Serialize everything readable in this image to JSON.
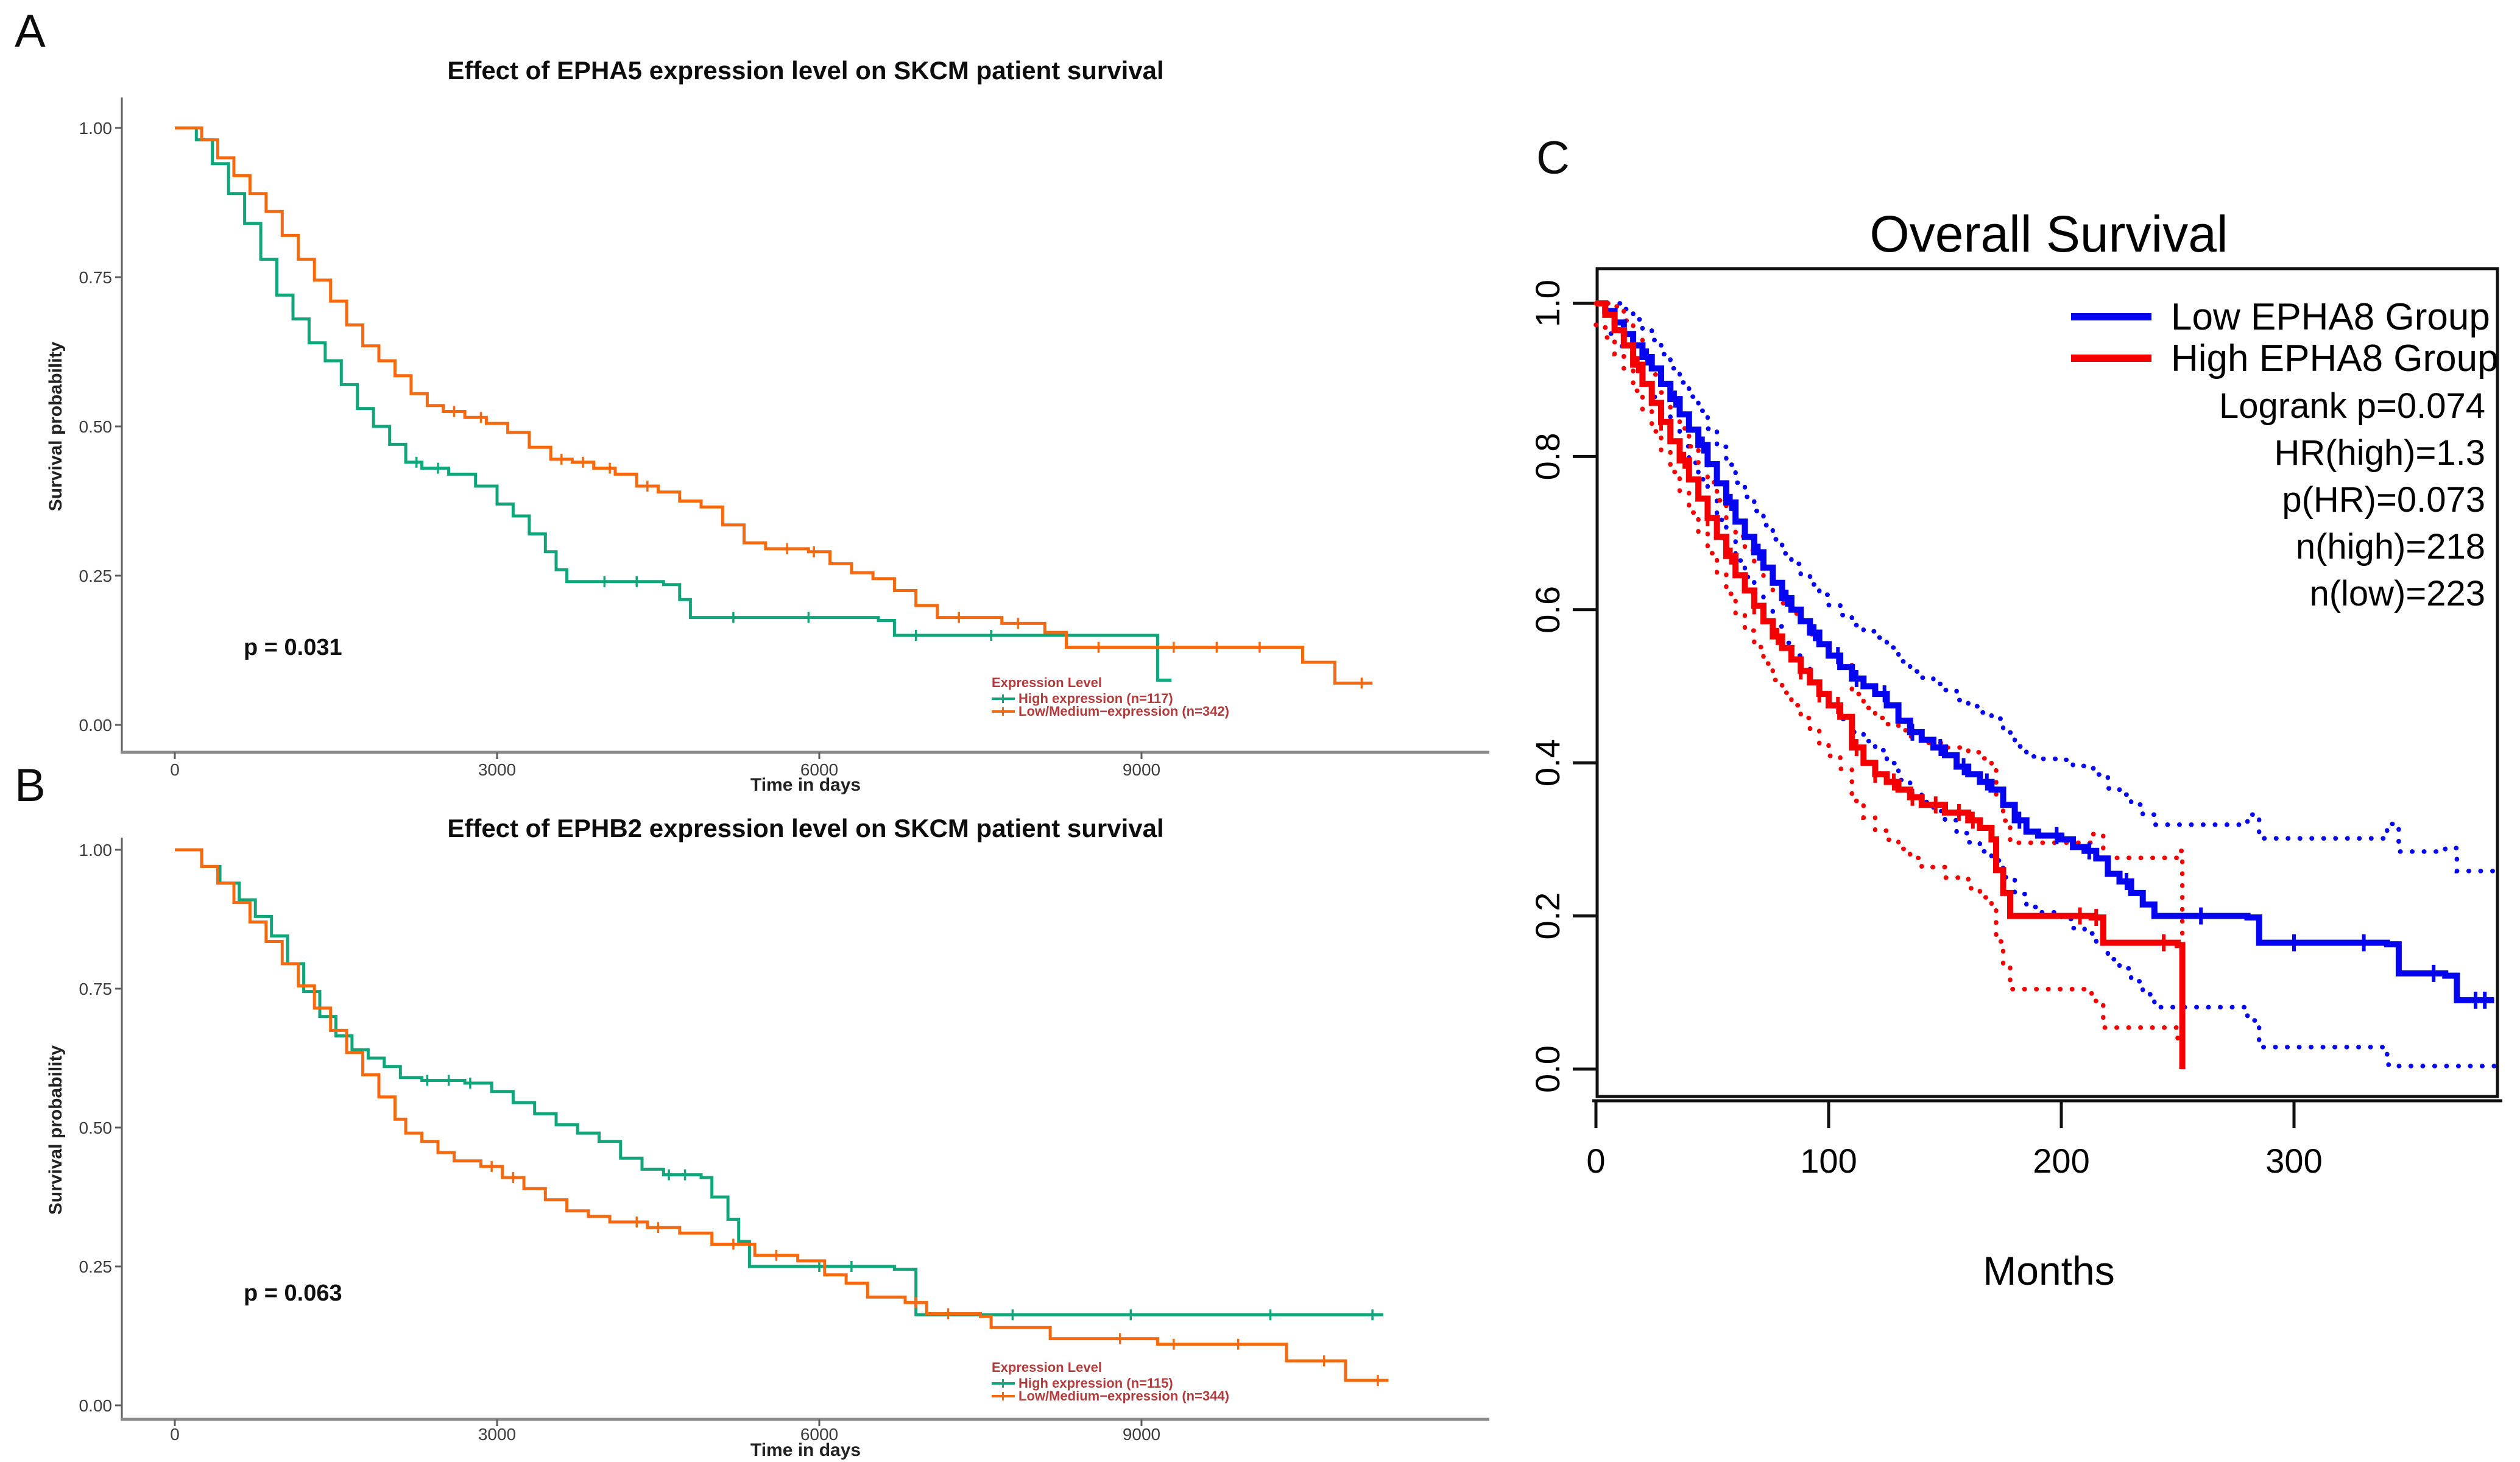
{
  "figure": {
    "background": "#ffffff",
    "description": "Three Kaplan-Meier survival plots"
  },
  "colors": {
    "green_high": "#10A57A",
    "orange_low": "#F5690F",
    "legend_red_text": "#B23B3B",
    "c_blue": "#0505F0",
    "c_red": "#F50000",
    "axis_gray": "#8a8a8a",
    "axis_dark": "#5f5f5f",
    "tick_text": "#3d3d3d",
    "c_frame": "#111111"
  },
  "chart_data": [
    {
      "panel_label": "A",
      "type": "line",
      "subtype": "kaplan-meier-step",
      "title": "Effect of EPHA5 expression level on SKCM patient survival",
      "xlabel": "Time in days",
      "ylabel": "Survival probability",
      "xlim": [
        0,
        12200
      ],
      "ylim": [
        0,
        1
      ],
      "xticks": [
        0,
        3000,
        6000,
        9000
      ],
      "xtick_labels": [
        "0",
        "3000",
        "6000",
        "9000"
      ],
      "yticks": [
        0,
        0.25,
        0.5,
        0.75,
        1
      ],
      "ytick_labels": [
        "0.00",
        "0.25",
        "0.50",
        "0.75",
        "1.00"
      ],
      "grid": false,
      "annotation": "p = 0.031",
      "legend": {
        "title": "Expression Level",
        "position": "bottom-right",
        "items": [
          {
            "label": "High expression (n=117)",
            "color": "#10A57A"
          },
          {
            "label": "Low/Medium−expression (n=342)",
            "color": "#F5690F"
          }
        ]
      },
      "series": [
        {
          "name": "High expression (n=117)",
          "color": "#10A57A",
          "step": true,
          "x": [
            0,
            200,
            350,
            500,
            650,
            800,
            950,
            1100,
            1250,
            1400,
            1550,
            1700,
            1850,
            2000,
            2150,
            2300,
            2550,
            2800,
            3000,
            3150,
            3300,
            3450,
            3550,
            3650,
            4550,
            4700,
            4800,
            6550,
            6700,
            9050,
            9150,
            9280
          ],
          "y": [
            1,
            0.98,
            0.94,
            0.89,
            0.84,
            0.78,
            0.72,
            0.68,
            0.64,
            0.61,
            0.57,
            0.53,
            0.5,
            0.47,
            0.44,
            0.43,
            0.42,
            0.4,
            0.37,
            0.35,
            0.32,
            0.29,
            0.26,
            0.24,
            0.235,
            0.21,
            0.18,
            0.175,
            0.15,
            0.15,
            0.075,
            0.075
          ],
          "censor_x": [
            2250,
            2450,
            4000,
            4300,
            5200,
            5900,
            6900,
            7600
          ]
        },
        {
          "name": "Low/Medium−expression (n=342)",
          "color": "#F5690F",
          "step": true,
          "x": [
            0,
            250,
            400,
            550,
            700,
            850,
            1000,
            1150,
            1300,
            1450,
            1600,
            1750,
            1900,
            2050,
            2200,
            2350,
            2500,
            2700,
            2900,
            3100,
            3300,
            3500,
            3700,
            3900,
            4100,
            4300,
            4500,
            4700,
            4900,
            5100,
            5300,
            5500,
            5900,
            6100,
            6300,
            6500,
            6700,
            6900,
            7100,
            7700,
            8100,
            8300,
            10300,
            10500,
            10800,
            11150
          ],
          "y": [
            1,
            0.98,
            0.95,
            0.92,
            0.89,
            0.86,
            0.82,
            0.78,
            0.745,
            0.71,
            0.67,
            0.635,
            0.61,
            0.585,
            0.555,
            0.535,
            0.525,
            0.515,
            0.505,
            0.49,
            0.465,
            0.445,
            0.44,
            0.43,
            0.42,
            0.4,
            0.39,
            0.375,
            0.365,
            0.335,
            0.305,
            0.295,
            0.29,
            0.27,
            0.255,
            0.245,
            0.225,
            0.2,
            0.18,
            0.17,
            0.155,
            0.13,
            0.13,
            0.105,
            0.07,
            0.07
          ],
          "censor_x": [
            2600,
            2850,
            3600,
            3800,
            4050,
            4400,
            5700,
            5950,
            7300,
            7850,
            8600,
            9300,
            9700,
            10100,
            11050
          ]
        }
      ]
    },
    {
      "panel_label": "B",
      "type": "line",
      "subtype": "kaplan-meier-step",
      "title": "Effect of EPHB2 expression level on SKCM patient survival",
      "xlabel": "Time in days",
      "ylabel": "Survival probability",
      "xlim": [
        0,
        12200
      ],
      "ylim": [
        0,
        1
      ],
      "xticks": [
        0,
        3000,
        6000,
        9000
      ],
      "xtick_labels": [
        "0",
        "3000",
        "6000",
        "9000"
      ],
      "yticks": [
        0,
        0.25,
        0.5,
        0.75,
        1
      ],
      "ytick_labels": [
        "0.00",
        "0.25",
        "0.50",
        "0.75",
        "1.00"
      ],
      "grid": false,
      "annotation": "p = 0.063",
      "legend": {
        "title": "Expression Level",
        "position": "bottom-right",
        "items": [
          {
            "label": "High expression (n=115)",
            "color": "#10A57A"
          },
          {
            "label": "Low/Medium−expression (n=344)",
            "color": "#F5690F"
          }
        ]
      },
      "series": [
        {
          "name": "High expression (n=115)",
          "color": "#10A57A",
          "step": true,
          "x": [
            0,
            250,
            420,
            600,
            750,
            900,
            1050,
            1200,
            1350,
            1500,
            1650,
            1800,
            1950,
            2100,
            2300,
            2700,
            2950,
            3150,
            3350,
            3550,
            3750,
            3950,
            4150,
            4350,
            4550,
            4900,
            5000,
            5150,
            5250,
            5350,
            6700,
            6900,
            11250
          ],
          "y": [
            1,
            0.97,
            0.94,
            0.91,
            0.88,
            0.845,
            0.795,
            0.745,
            0.7,
            0.665,
            0.64,
            0.625,
            0.61,
            0.59,
            0.585,
            0.58,
            0.565,
            0.545,
            0.525,
            0.505,
            0.49,
            0.475,
            0.445,
            0.425,
            0.415,
            0.41,
            0.375,
            0.335,
            0.295,
            0.25,
            0.245,
            0.163,
            0.163
          ],
          "censor_x": [
            2350,
            2550,
            2750,
            4600,
            4750,
            6000,
            6300,
            7800,
            8900,
            10200,
            11150
          ]
        },
        {
          "name": "Low/Medium−expression (n=344)",
          "color": "#F5690F",
          "step": true,
          "x": [
            0,
            250,
            400,
            550,
            700,
            850,
            1000,
            1150,
            1300,
            1450,
            1600,
            1750,
            1900,
            2050,
            2150,
            2300,
            2450,
            2600,
            2850,
            3050,
            3250,
            3450,
            3650,
            3850,
            4050,
            4400,
            4700,
            5000,
            5400,
            5800,
            6050,
            6250,
            6450,
            6800,
            7000,
            7500,
            7600,
            8150,
            9150,
            10250,
            10350,
            10900,
            11300
          ],
          "y": [
            1,
            0.97,
            0.94,
            0.905,
            0.87,
            0.835,
            0.795,
            0.755,
            0.715,
            0.675,
            0.635,
            0.595,
            0.555,
            0.515,
            0.49,
            0.475,
            0.455,
            0.44,
            0.43,
            0.41,
            0.39,
            0.37,
            0.35,
            0.34,
            0.33,
            0.32,
            0.31,
            0.29,
            0.27,
            0.26,
            0.235,
            0.22,
            0.195,
            0.185,
            0.165,
            0.16,
            0.14,
            0.12,
            0.11,
            0.11,
            0.08,
            0.045,
            0.045
          ],
          "censor_x": [
            2950,
            3150,
            4300,
            4500,
            5200,
            5600,
            6900,
            7200,
            8800,
            9300,
            9900,
            10700,
            11200
          ]
        }
      ]
    },
    {
      "panel_label": "C",
      "type": "line",
      "subtype": "kaplan-meier-step",
      "title": "Overall Survival",
      "xlabel": "Months",
      "ylabel": "",
      "xlim": [
        0,
        386
      ],
      "ylim": [
        0,
        1
      ],
      "xticks": [
        0,
        100,
        200,
        300
      ],
      "xtick_labels": [
        "0",
        "100",
        "200",
        "300"
      ],
      "yticks": [
        0,
        0.2,
        0.4,
        0.6,
        0.8,
        1.0
      ],
      "ytick_labels": [
        "0.0",
        "0.2",
        "0.4",
        "0.6",
        "0.8",
        "1.0"
      ],
      "grid": false,
      "legend": {
        "position": "top-right",
        "items": [
          {
            "label": "Low EPHA8 Group",
            "color": "#0505F0"
          },
          {
            "label": "High EPHA8 Group",
            "color": "#F50000"
          }
        ]
      },
      "stats": [
        "Logrank p=0.074",
        "HR(high)=1.3",
        "p(HR)=0.073",
        "n(high)=218",
        "n(low)=223"
      ],
      "ci": {
        "base": 0.028,
        "slope": 0.00038,
        "style": "dotted"
      },
      "series": [
        {
          "name": "Low EPHA8 Group",
          "color": "#0505F0",
          "step": true,
          "x": [
            0,
            4,
            8,
            12,
            16,
            20,
            24,
            28,
            32,
            36,
            40,
            44,
            48,
            52,
            56,
            60,
            64,
            68,
            72,
            76,
            80,
            84,
            88,
            92,
            96,
            100,
            105,
            110,
            115,
            120,
            125,
            130,
            135,
            140,
            145,
            150,
            155,
            160,
            165,
            170,
            175,
            180,
            185,
            190,
            200,
            205,
            210,
            215,
            220,
            225,
            230,
            235,
            240,
            280,
            285,
            340,
            345,
            365,
            370,
            386
          ],
          "y": [
            1,
            0.99,
            0.975,
            0.96,
            0.945,
            0.93,
            0.915,
            0.895,
            0.875,
            0.855,
            0.835,
            0.815,
            0.79,
            0.765,
            0.74,
            0.715,
            0.695,
            0.675,
            0.655,
            0.635,
            0.615,
            0.6,
            0.585,
            0.57,
            0.555,
            0.54,
            0.525,
            0.51,
            0.5,
            0.49,
            0.475,
            0.455,
            0.44,
            0.43,
            0.42,
            0.41,
            0.395,
            0.385,
            0.375,
            0.365,
            0.345,
            0.325,
            0.31,
            0.305,
            0.3,
            0.29,
            0.285,
            0.275,
            0.255,
            0.245,
            0.23,
            0.215,
            0.2,
            0.198,
            0.165,
            0.163,
            0.125,
            0.122,
            0.09,
            0.09
          ],
          "censor_x": [
            22,
            34,
            46,
            58,
            70,
            82,
            94,
            104,
            112,
            124,
            136,
            148,
            158,
            168,
            182,
            198,
            212,
            228,
            260,
            300,
            330,
            360,
            378,
            382
          ]
        },
        {
          "name": "High EPHA8 Group",
          "color": "#F50000",
          "step": true,
          "x": [
            0,
            4,
            8,
            12,
            16,
            20,
            24,
            28,
            32,
            36,
            40,
            44,
            48,
            52,
            56,
            60,
            64,
            68,
            72,
            76,
            80,
            84,
            88,
            92,
            96,
            100,
            105,
            110,
            115,
            120,
            125,
            130,
            135,
            140,
            150,
            160,
            165,
            170,
            172,
            175,
            178,
            213,
            218,
            250,
            252
          ],
          "y": [
            1,
            0.985,
            0.965,
            0.945,
            0.92,
            0.895,
            0.87,
            0.845,
            0.82,
            0.795,
            0.77,
            0.745,
            0.72,
            0.695,
            0.67,
            0.645,
            0.625,
            0.605,
            0.585,
            0.565,
            0.55,
            0.535,
            0.52,
            0.505,
            0.49,
            0.475,
            0.46,
            0.42,
            0.4,
            0.385,
            0.375,
            0.365,
            0.355,
            0.345,
            0.335,
            0.325,
            0.315,
            0.3,
            0.26,
            0.23,
            0.2,
            0.198,
            0.165,
            0.162,
            0
          ],
          "censor_x": [
            18,
            28,
            38,
            48,
            58,
            68,
            78,
            88,
            96,
            104,
            112,
            120,
            128,
            136,
            146,
            156,
            162,
            208,
            215,
            244
          ]
        }
      ]
    }
  ]
}
